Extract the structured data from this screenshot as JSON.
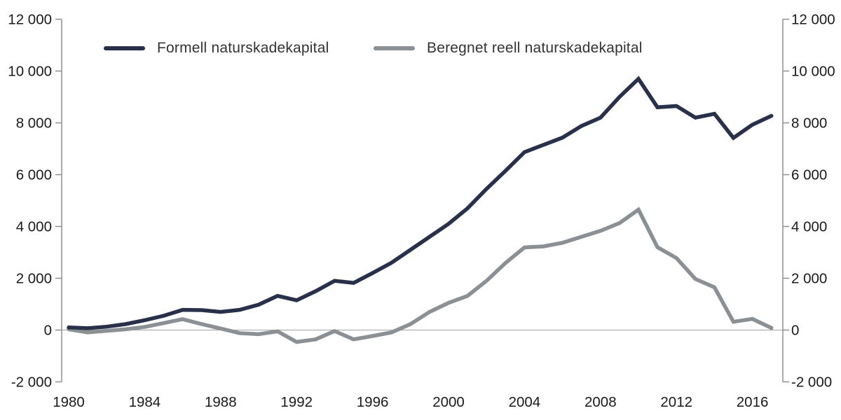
{
  "legend": {
    "items": [
      {
        "label": "Formell naturskadekapital",
        "color": "#283149"
      },
      {
        "label": "Beregnet reell naturskadekapital",
        "color": "#8b9095"
      }
    ]
  },
  "chart_data": {
    "type": "line",
    "title": "",
    "xlabel": "",
    "ylabel": "",
    "x": [
      1980,
      1981,
      1982,
      1983,
      1984,
      1985,
      1986,
      1987,
      1988,
      1989,
      1990,
      1991,
      1992,
      1993,
      1994,
      1995,
      1996,
      1997,
      1998,
      1999,
      2000,
      2001,
      2002,
      2003,
      2004,
      2005,
      2006,
      2007,
      2008,
      2009,
      2010,
      2011,
      2012,
      2013,
      2014,
      2015,
      2016,
      2017
    ],
    "series": [
      {
        "name": "Formell naturskadekapital",
        "color": "#283149",
        "values": [
          100,
          70,
          130,
          230,
          380,
          550,
          780,
          770,
          700,
          780,
          980,
          1320,
          1150,
          1500,
          1900,
          1820,
          2200,
          2600,
          3100,
          3600,
          4100,
          4700,
          5450,
          6150,
          6870,
          7150,
          7430,
          7880,
          8200,
          9000,
          9700,
          8600,
          8650,
          8200,
          8350,
          7420,
          7930,
          8270
        ]
      },
      {
        "name": "Beregnet reell naturskadekapital",
        "color": "#8b9095",
        "values": [
          30,
          -90,
          -30,
          30,
          120,
          270,
          420,
          230,
          60,
          -120,
          -160,
          -50,
          -460,
          -360,
          -40,
          -360,
          -230,
          -90,
          230,
          700,
          1050,
          1320,
          1900,
          2590,
          3190,
          3230,
          3370,
          3600,
          3830,
          4130,
          4650,
          3200,
          2780,
          1970,
          1650,
          320,
          430,
          80
        ]
      }
    ],
    "ylim": [
      -2000,
      12000
    ],
    "xticks": [
      1980,
      1984,
      1988,
      1992,
      1996,
      2000,
      2004,
      2008,
      2012,
      2016
    ],
    "xtick_labels": [
      "1980",
      "1984",
      "1988",
      "1992",
      "1996",
      "2000",
      "2004",
      "2008",
      "2012",
      "2016"
    ],
    "ytick_values": [
      12000,
      10000,
      8000,
      6000,
      4000,
      2000,
      0,
      -2000
    ],
    "ytick_labels": [
      "12 000",
      "10 000",
      "8 000",
      "6 000",
      "4 000",
      "2 000",
      "0",
      "-2 000"
    ],
    "y_axis_sides": [
      "left",
      "right"
    ],
    "grid": "zero-line-only",
    "legend_position": "top",
    "colors": {
      "axis": "#8f8f8f",
      "zero_line": "#a2a2a2",
      "tick_text": "#1a1a1a"
    }
  }
}
